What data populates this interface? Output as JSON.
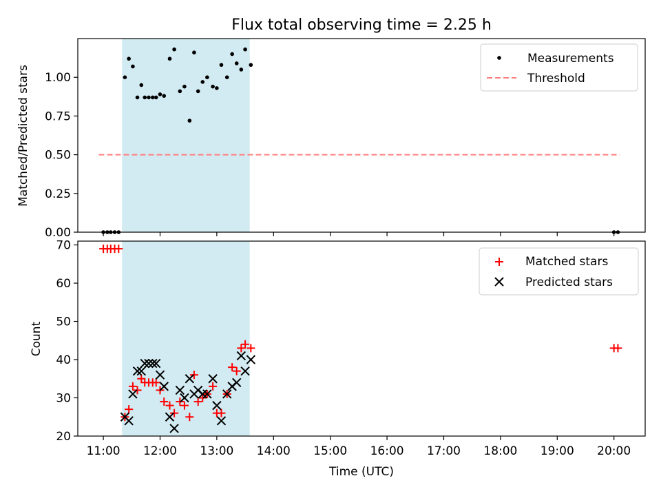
{
  "figure_title": "Flux total observing time = 2.25 h",
  "x_axis": {
    "label": "Time (UTC)",
    "ticks": [
      "11:00",
      "12:00",
      "13:00",
      "14:00",
      "15:00",
      "16:00",
      "17:00",
      "18:00",
      "19:00",
      "20:00"
    ],
    "range_hours": [
      10.55,
      20.55
    ]
  },
  "observing_window_hours": [
    11.33,
    13.58
  ],
  "colors": {
    "window": "#add8e6",
    "measurement": "#000000",
    "threshold": "#ff7f7f",
    "matched": "#ff0000",
    "predicted": "#000000"
  },
  "chart_data": [
    {
      "type": "scatter",
      "title": "Flux total observing time = 2.25 h",
      "xlabel": "",
      "ylabel": "Matched/Predicted stars",
      "ylim": [
        0,
        1.25
      ],
      "yticks": [
        "0.00",
        "0.25",
        "0.50",
        "0.75",
        "1.00"
      ],
      "legend": {
        "position": "top-right",
        "entries": [
          "Measurements",
          "Threshold"
        ]
      },
      "threshold": {
        "name": "Threshold",
        "value": 0.5,
        "x_range": [
          10.92,
          20.1
        ]
      },
      "series": [
        {
          "name": "Measurements",
          "x": [
            11.0,
            11.07,
            11.13,
            11.2,
            11.27,
            11.38,
            11.45,
            11.52,
            11.6,
            11.67,
            11.73,
            11.8,
            11.87,
            11.93,
            12.0,
            12.07,
            12.17,
            12.25,
            12.35,
            12.43,
            12.52,
            12.6,
            12.67,
            12.75,
            12.83,
            12.93,
            13.0,
            13.08,
            13.18,
            13.27,
            13.35,
            13.43,
            13.5,
            13.6,
            20.0,
            20.07
          ],
          "y": [
            0,
            0,
            0,
            0,
            0,
            1.0,
            1.12,
            1.07,
            0.87,
            0.95,
            0.87,
            0.87,
            0.87,
            0.87,
            0.89,
            0.88,
            1.12,
            1.18,
            0.91,
            0.94,
            0.72,
            1.16,
            0.91,
            0.97,
            1.0,
            0.94,
            0.93,
            1.08,
            1.0,
            1.15,
            1.09,
            1.05,
            1.18,
            1.08,
            0,
            0
          ]
        }
      ]
    },
    {
      "type": "scatter",
      "xlabel": "Time (UTC)",
      "ylabel": "Count",
      "ylim": [
        20,
        71
      ],
      "yticks": [
        "20",
        "30",
        "40",
        "50",
        "60",
        "70"
      ],
      "legend": {
        "position": "top-right",
        "entries": [
          "Matched stars",
          "Predicted stars"
        ]
      },
      "series": [
        {
          "name": "Matched stars",
          "x": [
            11.0,
            11.07,
            11.13,
            11.2,
            11.27,
            11.38,
            11.45,
            11.52,
            11.6,
            11.67,
            11.73,
            11.8,
            11.87,
            11.93,
            12.0,
            12.07,
            12.17,
            12.25,
            12.35,
            12.43,
            12.52,
            12.6,
            12.67,
            12.75,
            12.83,
            12.93,
            13.0,
            13.08,
            13.18,
            13.27,
            13.35,
            13.43,
            13.5,
            13.6,
            20.0,
            20.07
          ],
          "y": [
            69,
            69,
            69,
            69,
            69,
            25,
            27,
            33,
            32,
            35,
            34,
            34,
            34,
            34,
            32,
            29,
            28,
            26,
            29,
            28,
            25,
            36,
            29,
            30,
            31,
            33,
            26,
            26,
            31,
            38,
            37,
            43,
            44,
            43,
            43,
            43
          ]
        },
        {
          "name": "Predicted stars",
          "x": [
            11.38,
            11.45,
            11.52,
            11.6,
            11.67,
            11.73,
            11.8,
            11.87,
            11.93,
            12.0,
            12.07,
            12.17,
            12.25,
            12.35,
            12.43,
            12.52,
            12.6,
            12.67,
            12.75,
            12.83,
            12.93,
            13.0,
            13.08,
            13.18,
            13.27,
            13.35,
            13.43,
            13.5,
            13.6
          ],
          "y": [
            25,
            24,
            31,
            37,
            37,
            39,
            39,
            39,
            39,
            36,
            33,
            25,
            22,
            32,
            30,
            35,
            31,
            32,
            31,
            31,
            35,
            28,
            24,
            31,
            33,
            34,
            41,
            37,
            40
          ]
        }
      ]
    }
  ]
}
